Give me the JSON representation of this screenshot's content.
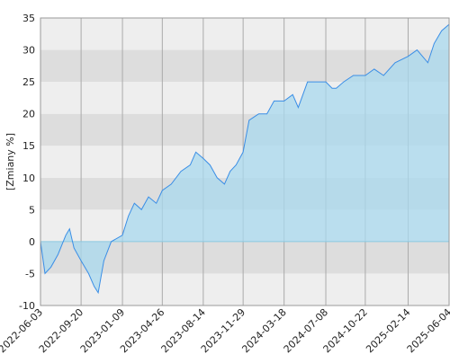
{
  "chart_data": {
    "type": "area",
    "y_label": "[Zmiany %]",
    "x": [
      "2022-06-03",
      "2022-06-15",
      "2022-07-01",
      "2022-07-20",
      "2022-08-10",
      "2022-08-20",
      "2022-09-01",
      "2022-09-20",
      "2022-10-10",
      "2022-10-25",
      "2022-11-05",
      "2022-11-20",
      "2022-12-10",
      "2023-01-09",
      "2023-01-25",
      "2023-02-10",
      "2023-03-01",
      "2023-03-20",
      "2023-04-10",
      "2023-04-26",
      "2023-05-20",
      "2023-06-15",
      "2023-07-10",
      "2023-07-25",
      "2023-08-14",
      "2023-09-01",
      "2023-09-20",
      "2023-10-10",
      "2023-10-25",
      "2023-11-10",
      "2023-11-29",
      "2023-12-15",
      "2024-01-10",
      "2024-02-01",
      "2024-02-20",
      "2024-03-18",
      "2024-04-10",
      "2024-04-25",
      "2024-05-20",
      "2024-06-10",
      "2024-07-08",
      "2024-07-25",
      "2024-08-05",
      "2024-08-25",
      "2024-09-20",
      "2024-10-22",
      "2024-11-15",
      "2024-12-10",
      "2025-01-10",
      "2025-02-14",
      "2025-03-10",
      "2025-04-08",
      "2025-04-25",
      "2025-05-15",
      "2025-06-04"
    ],
    "series": [
      {
        "color": "#3a8ee6",
        "fill": "#a8d8ee",
        "values": [
          0,
          -5,
          -4,
          -2,
          1,
          2,
          -1,
          -3,
          -5,
          -7,
          -8,
          -3,
          0,
          1,
          4,
          6,
          5,
          7,
          6,
          8,
          9,
          11,
          12,
          14,
          13,
          12,
          10,
          9,
          11,
          12,
          14,
          19,
          20,
          20,
          22,
          22,
          23,
          21,
          25,
          25,
          25,
          24,
          24,
          25,
          26,
          26,
          27,
          26,
          28,
          29,
          30,
          28,
          31,
          33,
          34
        ]
      }
    ],
    "xlim": [
      "2022-06-03",
      "2025-06-04"
    ],
    "xticks": [
      "2022-06-03",
      "2022-09-20",
      "2023-01-09",
      "2023-04-26",
      "2023-08-14",
      "2023-11-29",
      "2024-03-18",
      "2024-07-08",
      "2024-10-22",
      "2025-02-14",
      "2025-06-04"
    ],
    "ylim": [
      -10,
      35
    ],
    "yticks": [
      -10,
      -5,
      0,
      5,
      10,
      15,
      20,
      25,
      30,
      35
    ],
    "grid": true,
    "bands": [
      "#eeeeee",
      "#dddddd"
    ]
  }
}
